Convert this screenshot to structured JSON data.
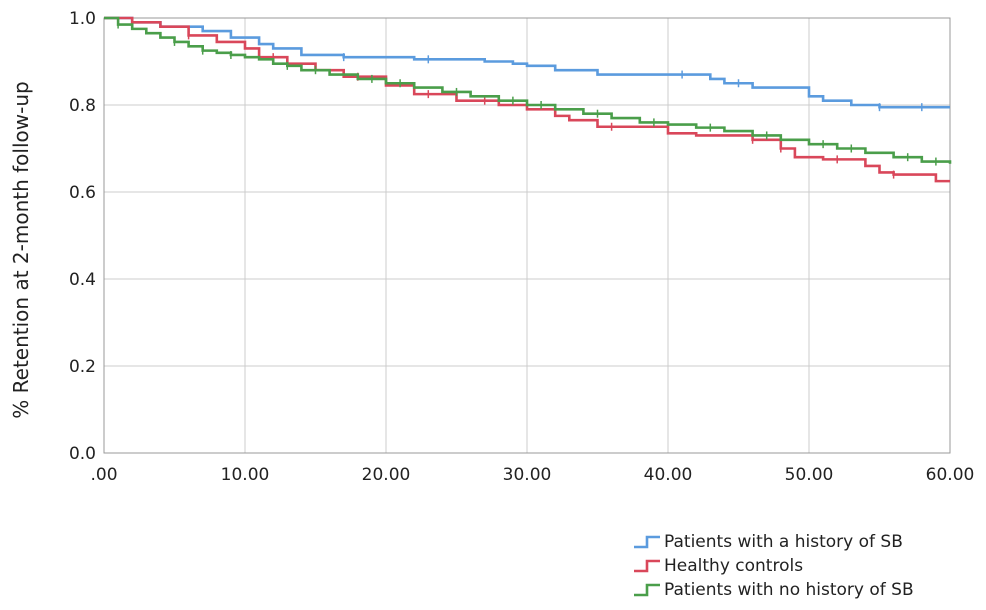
{
  "chart_data": {
    "type": "line",
    "step": true,
    "xlabel": "",
    "ylabel": "% Retention at 2-month follow-up",
    "xlim": [
      0,
      60
    ],
    "ylim": [
      0,
      1.0
    ],
    "xticks": [
      ".00",
      "10.00",
      "20.00",
      "30.00",
      "40.00",
      "50.00",
      "60.00"
    ],
    "yticks": [
      "0.0",
      "0.2",
      "0.4",
      "0.6",
      "0.8",
      "1.0"
    ],
    "grid": true,
    "legend_position": "bottom-right",
    "series": [
      {
        "name": "Patients with a history of SB",
        "color": "#5b9bde",
        "x": [
          0,
          2,
          4,
          7,
          9,
          11,
          12,
          14,
          17,
          22,
          27,
          29,
          30,
          32,
          35,
          43,
          44,
          46,
          50,
          51,
          53,
          55,
          60
        ],
        "y": [
          1.0,
          0.99,
          0.98,
          0.97,
          0.955,
          0.94,
          0.93,
          0.915,
          0.91,
          0.905,
          0.9,
          0.895,
          0.89,
          0.88,
          0.87,
          0.86,
          0.85,
          0.84,
          0.82,
          0.81,
          0.8,
          0.795,
          0.795
        ],
        "censors": [
          17,
          23,
          41,
          45,
          55,
          58
        ]
      },
      {
        "name": "Healthy controls",
        "color": "#d9475a",
        "x": [
          0,
          2,
          4,
          6,
          8,
          10,
          11,
          13,
          15,
          17,
          20,
          22,
          25,
          28,
          30,
          32,
          33,
          35,
          40,
          42,
          46,
          48,
          49,
          51,
          54,
          55,
          56,
          59,
          60
        ],
        "y": [
          1.0,
          0.99,
          0.98,
          0.96,
          0.945,
          0.93,
          0.91,
          0.895,
          0.88,
          0.865,
          0.845,
          0.825,
          0.81,
          0.8,
          0.79,
          0.775,
          0.765,
          0.75,
          0.735,
          0.73,
          0.72,
          0.7,
          0.68,
          0.675,
          0.66,
          0.645,
          0.64,
          0.625,
          0.625
        ],
        "censors": [
          6,
          12,
          18,
          23,
          27,
          36,
          46,
          48,
          52,
          56
        ]
      },
      {
        "name": "Patients with no history of SB",
        "color": "#4a9e4a",
        "x": [
          0,
          1,
          2,
          3,
          4,
          5,
          6,
          7,
          8,
          9,
          10,
          11,
          12,
          13,
          14,
          16,
          18,
          20,
          22,
          24,
          26,
          28,
          30,
          32,
          34,
          36,
          38,
          40,
          42,
          44,
          46,
          48,
          50,
          52,
          54,
          56,
          58,
          60
        ],
        "y": [
          1.0,
          0.985,
          0.975,
          0.965,
          0.955,
          0.945,
          0.935,
          0.925,
          0.92,
          0.915,
          0.91,
          0.905,
          0.895,
          0.89,
          0.88,
          0.87,
          0.86,
          0.85,
          0.84,
          0.83,
          0.82,
          0.81,
          0.8,
          0.79,
          0.78,
          0.77,
          0.76,
          0.755,
          0.748,
          0.74,
          0.73,
          0.72,
          0.71,
          0.7,
          0.69,
          0.68,
          0.67,
          0.665
        ],
        "censors": [
          1,
          5,
          7,
          9,
          13,
          15,
          19,
          21,
          25,
          29,
          31,
          35,
          39,
          43,
          47,
          51,
          53,
          57,
          59
        ]
      }
    ]
  }
}
